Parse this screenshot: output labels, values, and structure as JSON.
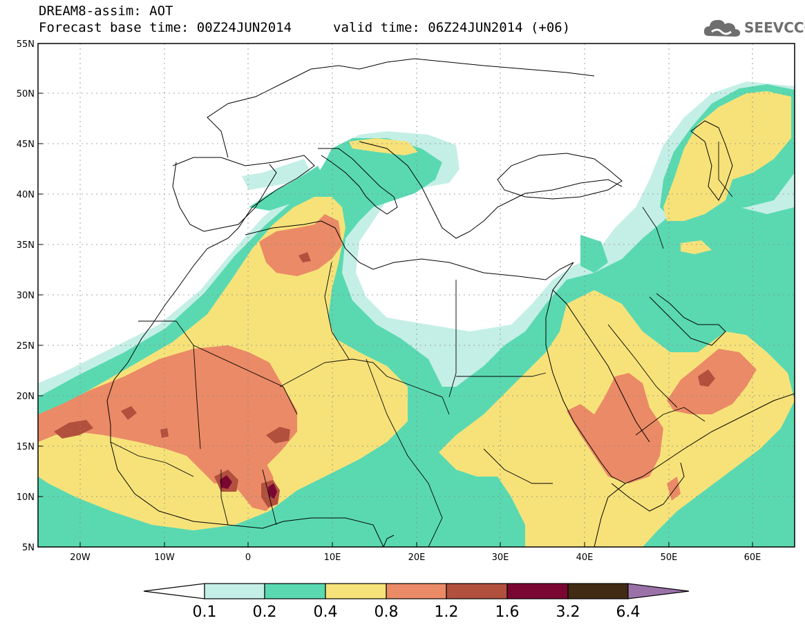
{
  "header": {
    "line1": "DREAM8-assim: AOT",
    "line2": "Forecast base time: 00Z24JUN2014",
    "valid": "valid time: 06Z24JUN2014 (+06)",
    "logo_text": "SEEVCCC",
    "logo_icon": "cloud-icon"
  },
  "map": {
    "lon_range": [
      -25,
      65
    ],
    "lat_range": [
      5,
      55
    ],
    "lat_ticks": [
      "55N",
      "50N",
      "45N",
      "40N",
      "35N",
      "30N",
      "25N",
      "20N",
      "15N",
      "10N",
      "5N"
    ],
    "lon_ticks": [
      "20W",
      "10W",
      "0",
      "10E",
      "20E",
      "30E",
      "40E",
      "50E",
      "60E"
    ],
    "gridlines": true
  },
  "colorbar": {
    "levels": [
      "0.1",
      "0.2",
      "0.4",
      "0.8",
      "1.2",
      "1.6",
      "3.2",
      "6.4"
    ],
    "colors": {
      "c1": "#c4efe6",
      "c2": "#5ad9b1",
      "c3": "#f7e27a",
      "c4": "#eb8a66",
      "c5": "#b2503e",
      "c6": "#7a0732",
      "c7": "#412b15",
      "c8": "#9a72a8"
    }
  }
}
